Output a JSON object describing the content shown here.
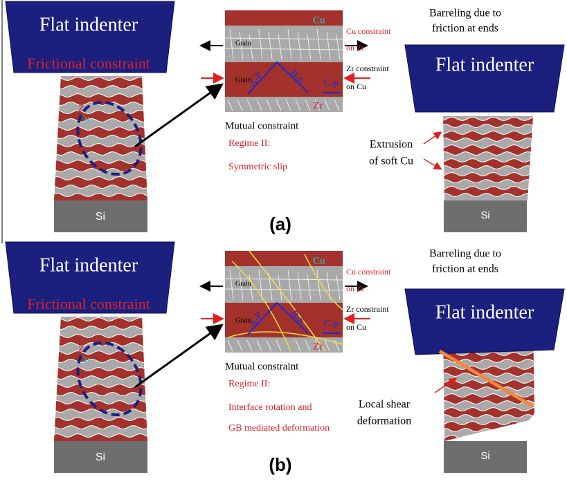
{
  "panels": [
    {
      "label": "(a)",
      "left": {
        "indenter": "Flat indenter",
        "constraint": "Frictional constraint",
        "zr": "Zr",
        "cu": "Cu",
        "substrate": "Si"
      },
      "middle": {
        "top_phase": "Cu",
        "grain_top": "Grain",
        "grain_middle": "Grain",
        "slip_a": "A-P",
        "slip_b": "B-P",
        "slip_c": "C-P",
        "bottom_phase": "Zr",
        "cu_constraint": [
          "Cu constraint",
          "on Zr"
        ],
        "zr_constraint": [
          "Zr constraint",
          "on Cu"
        ],
        "caption": "Mutual constraint",
        "regime": "Regime II:",
        "mechanism": [
          "Symmetric  slip"
        ]
      },
      "right": {
        "title": [
          "Barreling due to",
          "friction at ends"
        ],
        "indenter": "Flat indenter",
        "note": [
          "Extrusion",
          "of soft Cu"
        ],
        "substrate": "Si"
      }
    },
    {
      "label": "(b)",
      "left": {
        "indenter": "Flat indenter",
        "constraint": "Frictional constraint",
        "zr": "Zr",
        "cu": "Cu",
        "substrate": "Si"
      },
      "middle": {
        "top_phase": "Cu",
        "grain_top": "Grain",
        "grain_middle": "Grain",
        "slip_a": "A-P",
        "slip_b": "B-P",
        "slip_c": "C-P",
        "bottom_phase": "Zr",
        "cu_constraint": [
          "Cu constraint",
          "on Zr"
        ],
        "zr_constraint": [
          "Zr constraint",
          "on Cu"
        ],
        "caption": "Mutual constraint",
        "regime": "Regime II:",
        "mechanism": [
          "Interface rotation and",
          "GB mediated deformation"
        ]
      },
      "right": {
        "title": [
          "Barreling due to",
          "friction at ends"
        ],
        "indenter": "Flat indenter",
        "note": [
          "Local shear",
          "deformation"
        ],
        "substrate": "Si"
      }
    }
  ]
}
